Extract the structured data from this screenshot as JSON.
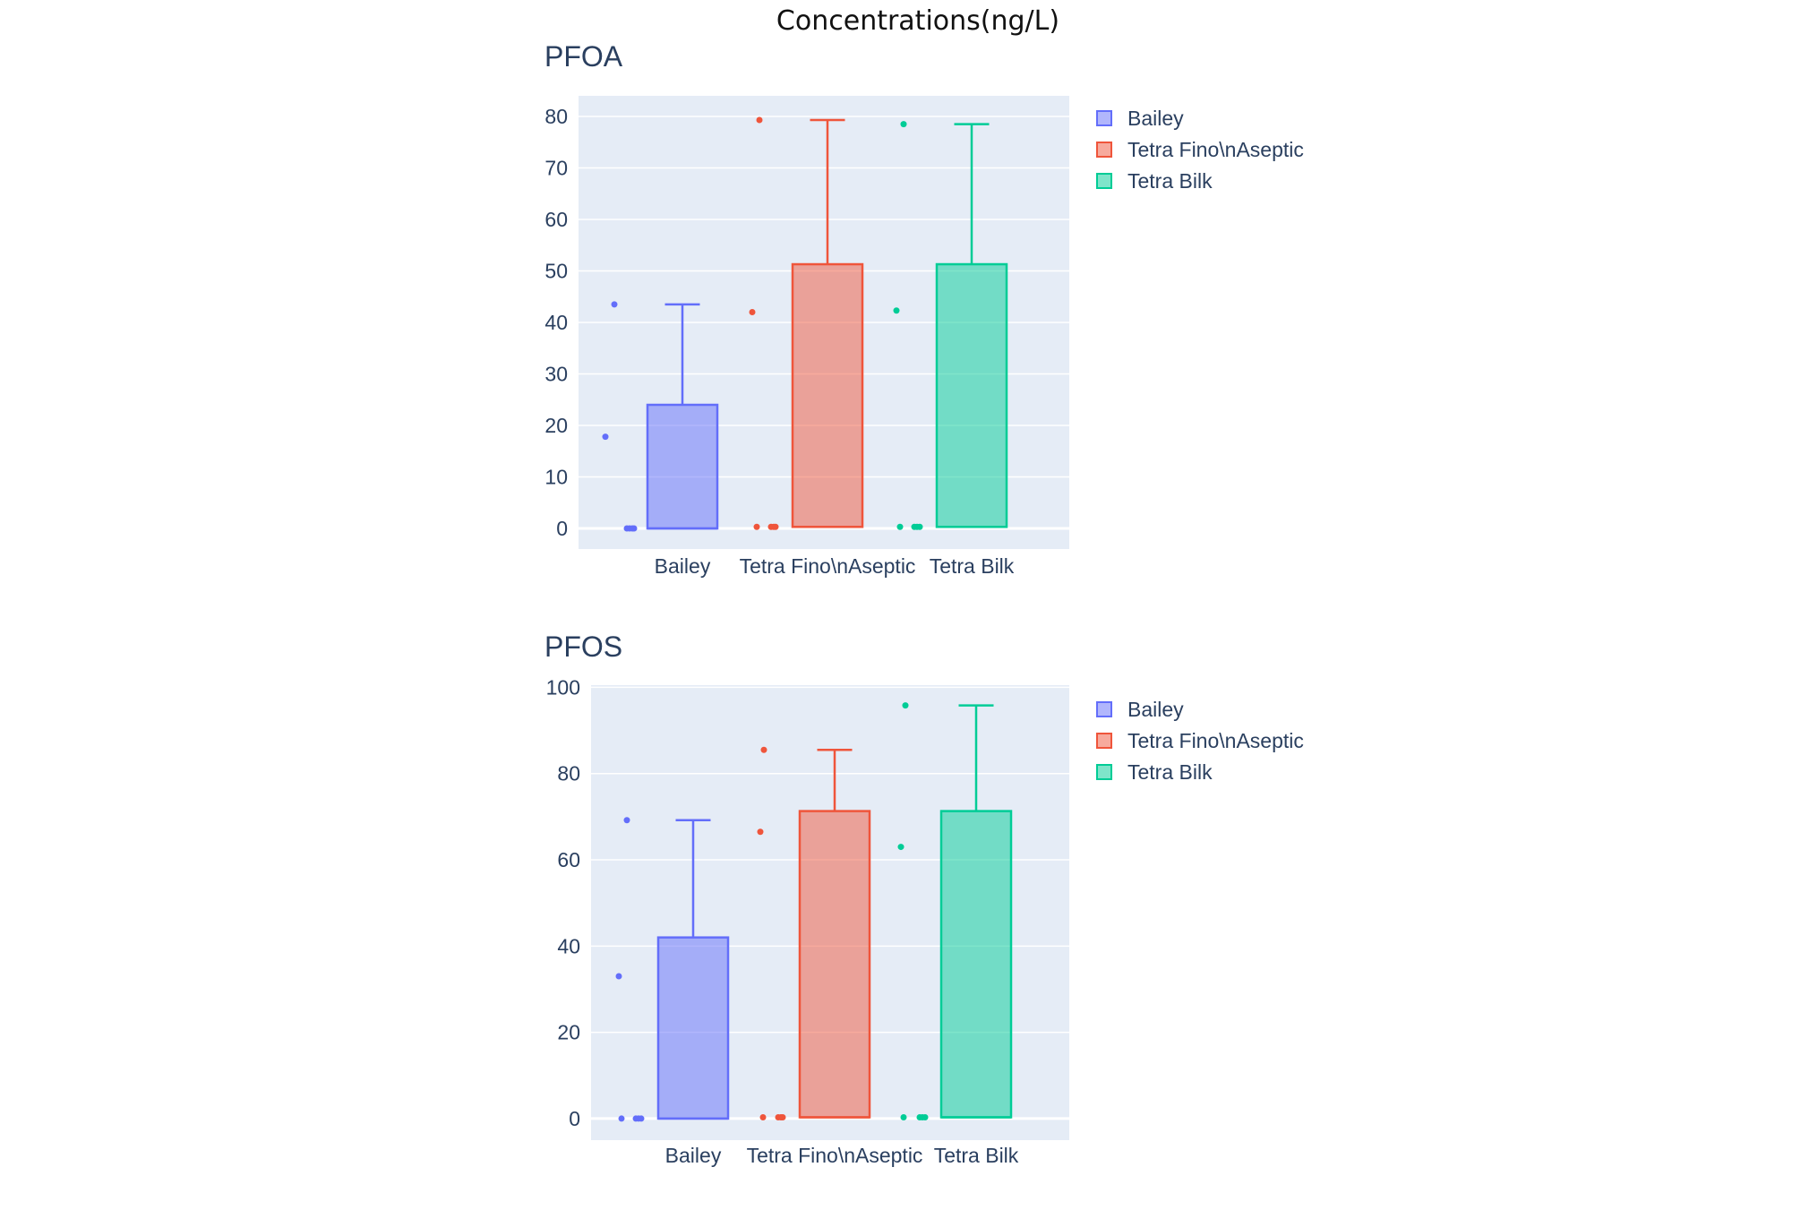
{
  "page": {
    "title": "Concentrations(ng/L)"
  },
  "colors": {
    "plot_bg": "#e5ecf6",
    "grid": "#ffffff",
    "text": "#2a3f5f"
  },
  "chart_data": [
    {
      "type": "box",
      "title": "PFOA",
      "categories": [
        "Bailey",
        "Tetra Fino\\nAseptic",
        "Tetra Bilk"
      ],
      "yticks": [
        0,
        10,
        20,
        30,
        40,
        50,
        60,
        70,
        80
      ],
      "ylim": [
        -4,
        84
      ],
      "legend": "top-right",
      "points": "all",
      "series": [
        {
          "name": "Bailey",
          "color": "#636efa",
          "fill": "rgba(99,110,250,0.5)",
          "box": {
            "min": 0,
            "q1": 0,
            "median": 0,
            "q3": 24,
            "max": 43.5
          },
          "points": [
            43.5,
            17.8,
            0,
            0,
            0,
            0
          ]
        },
        {
          "name": "Tetra Fino\\nAseptic",
          "color": "#ef553b",
          "fill": "rgba(239,85,59,0.5)",
          "box": {
            "min": 0.3,
            "q1": 0.3,
            "median": 0.3,
            "q3": 51.3,
            "max": 79.3
          },
          "points": [
            79.3,
            42,
            0.3,
            0.3,
            0.3,
            0.3
          ]
        },
        {
          "name": "Tetra Bilk",
          "color": "#00cc96",
          "fill": "rgba(0,204,150,0.5)",
          "box": {
            "min": 0.3,
            "q1": 0.3,
            "median": 0.3,
            "q3": 51.3,
            "max": 78.5
          },
          "points": [
            78.5,
            42.3,
            0.3,
            0.3,
            0.3,
            0.3
          ]
        }
      ]
    },
    {
      "type": "box",
      "title": "PFOS",
      "categories": [
        "Bailey",
        "Tetra Fino\\nAseptic",
        "Tetra Bilk"
      ],
      "yticks": [
        0,
        20,
        40,
        60,
        80,
        100
      ],
      "ylim": [
        -5,
        100.5
      ],
      "legend": "top-right",
      "points": "all",
      "series": [
        {
          "name": "Bailey",
          "color": "#636efa",
          "fill": "rgba(99,110,250,0.5)",
          "box": {
            "min": 0,
            "q1": 0,
            "median": 0,
            "q3": 42,
            "max": 69.2
          },
          "points": [
            69.2,
            33,
            0,
            0,
            0,
            0
          ]
        },
        {
          "name": "Tetra Fino\\nAseptic",
          "color": "#ef553b",
          "fill": "rgba(239,85,59,0.5)",
          "box": {
            "min": 0.3,
            "q1": 0.3,
            "median": 0.3,
            "q3": 71.3,
            "max": 85.5
          },
          "points": [
            85.5,
            66.5,
            0.3,
            0.3,
            0.3,
            0.3
          ]
        },
        {
          "name": "Tetra Bilk",
          "color": "#00cc96",
          "fill": "rgba(0,204,150,0.5)",
          "box": {
            "min": 0.3,
            "q1": 0.3,
            "median": 0.3,
            "q3": 71.3,
            "max": 95.8
          },
          "points": [
            95.8,
            63,
            0.3,
            0.3,
            0.3,
            0.3
          ]
        }
      ]
    }
  ]
}
